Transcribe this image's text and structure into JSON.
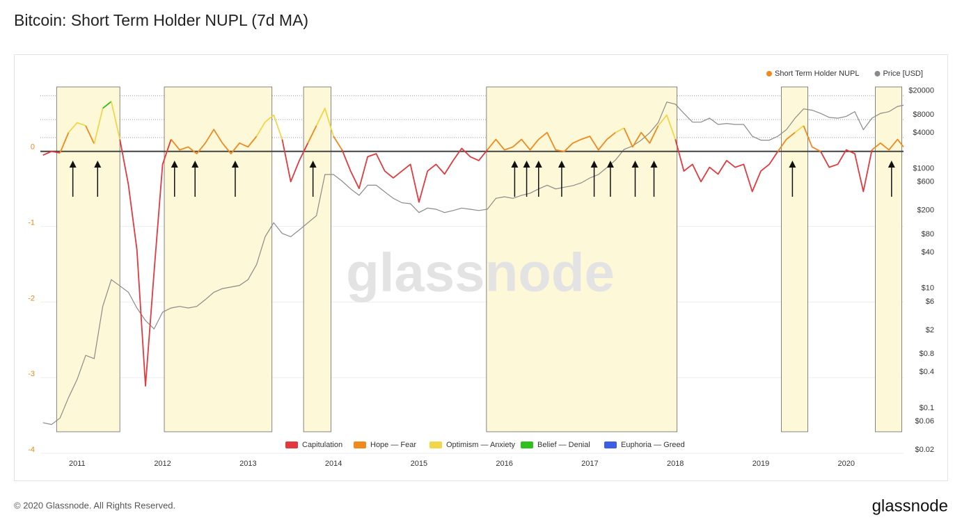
{
  "chart_data": {
    "type": "line",
    "title": "Bitcoin: Short Term Holder NUPL (7d MA)",
    "x": [
      2010.6,
      2010.7,
      2010.8,
      2010.9,
      2011.0,
      2011.1,
      2011.2,
      2011.3,
      2011.4,
      2011.5,
      2011.6,
      2011.7,
      2011.8,
      2011.9,
      2012.0,
      2012.1,
      2012.2,
      2012.3,
      2012.4,
      2012.5,
      2012.6,
      2012.7,
      2012.8,
      2012.9,
      2013.0,
      2013.1,
      2013.2,
      2013.3,
      2013.4,
      2013.5,
      2013.6,
      2013.7,
      2013.8,
      2013.9,
      2014.0,
      2014.1,
      2014.2,
      2014.3,
      2014.4,
      2014.5,
      2014.6,
      2014.7,
      2014.8,
      2014.9,
      2015.0,
      2015.1,
      2015.2,
      2015.3,
      2015.4,
      2015.5,
      2015.6,
      2015.7,
      2015.8,
      2015.9,
      2016.0,
      2016.1,
      2016.2,
      2016.3,
      2016.4,
      2016.5,
      2016.6,
      2016.7,
      2016.8,
      2016.9,
      2017.0,
      2017.1,
      2017.2,
      2017.3,
      2017.4,
      2017.5,
      2017.6,
      2017.7,
      2017.8,
      2017.9,
      2018.0,
      2018.1,
      2018.2,
      2018.3,
      2018.4,
      2018.5,
      2018.6,
      2018.7,
      2018.8,
      2018.9,
      2019.0,
      2019.1,
      2019.2,
      2019.3,
      2019.4,
      2019.5,
      2019.6,
      2019.7,
      2019.8,
      2019.9,
      2020.0,
      2020.1,
      2020.2,
      2020.3,
      2020.4,
      2020.5,
      2020.6,
      2020.67
    ],
    "series": [
      {
        "name": "Short Term Holder NUPL",
        "color": "#f0891e",
        "values": [
          -0.05,
          0,
          -0.02,
          0.25,
          0.38,
          0.34,
          0.1,
          0.57,
          0.66,
          0.16,
          -0.44,
          -1.3,
          -3.1,
          -1.6,
          -0.17,
          0.16,
          0.02,
          0.06,
          -0.03,
          0.11,
          0.29,
          0.11,
          -0.03,
          0.11,
          0.06,
          0.2,
          0.39,
          0.48,
          0.16,
          -0.4,
          -0.12,
          0.11,
          0.34,
          0.57,
          0.2,
          0.02,
          -0.26,
          -0.49,
          -0.07,
          -0.03,
          -0.26,
          -0.35,
          -0.26,
          -0.17,
          -0.67,
          -0.26,
          -0.17,
          -0.3,
          -0.12,
          0.04,
          -0.07,
          -0.12,
          0.02,
          0.16,
          0.02,
          0.06,
          0.16,
          0.02,
          0.16,
          0.25,
          0.02,
          0,
          0.11,
          0.16,
          0.2,
          0.02,
          0.16,
          0.25,
          0.31,
          0.06,
          0.25,
          0.11,
          0.34,
          0.48,
          0.16,
          -0.26,
          -0.17,
          -0.4,
          -0.21,
          -0.3,
          -0.12,
          -0.21,
          -0.17,
          -0.53,
          -0.26,
          -0.17,
          0,
          0.16,
          0.25,
          0.34,
          0.06,
          0,
          -0.21,
          -0.17,
          0.02,
          -0.03,
          -0.53,
          0.02,
          0.11,
          0.02,
          0.16,
          0.06
        ]
      },
      {
        "name": "Price [USD]",
        "color": "#8a8a8a",
        "axis": "y2",
        "values": [
          0.057,
          0.053,
          0.068,
          0.15,
          0.3,
          0.76,
          0.67,
          5,
          14,
          11,
          8.6,
          4.7,
          2.9,
          2.1,
          4,
          4.7,
          5,
          4.7,
          5,
          6.5,
          8.6,
          9.9,
          10.5,
          11.2,
          14,
          25,
          73,
          125,
          83,
          73,
          95,
          125,
          164,
          800,
          800,
          620,
          460,
          360,
          530,
          530,
          410,
          320,
          270,
          260,
          185,
          220,
          210,
          185,
          200,
          220,
          210,
          200,
          210,
          320,
          340,
          320,
          360,
          390,
          460,
          530,
          460,
          490,
          520,
          580,
          700,
          800,
          1050,
          1400,
          2100,
          2400,
          3000,
          4000,
          5900,
          13000,
          12000,
          8400,
          6000,
          6000,
          7000,
          5500,
          5700,
          5500,
          5500,
          3500,
          3000,
          3000,
          3500,
          4500,
          7000,
          10000,
          9500,
          8400,
          7200,
          7000,
          7500,
          9000,
          4500,
          7000,
          8400,
          9000,
          11000,
          11500
        ]
      }
    ],
    "zones": [
      {
        "name": "Capitulation",
        "color": "#e0393e"
      },
      {
        "name": "Hope — Fear",
        "color": "#f0891e"
      },
      {
        "name": "Optimism — Anxiety",
        "color": "#f2d649"
      },
      {
        "name": "Belief — Denial",
        "color": "#2dc01e"
      },
      {
        "name": "Euphoria — Greed",
        "color": "#3b5fe0"
      }
    ],
    "highlights": [
      [
        2010.76,
        2011.5
      ],
      [
        2012.02,
        2013.28
      ],
      [
        2013.65,
        2013.97
      ],
      [
        2015.79,
        2018.02
      ],
      [
        2019.24,
        2019.55
      ],
      [
        2020.34,
        2020.65
      ]
    ],
    "arrows": [
      2010.95,
      2011.24,
      2012.14,
      2012.38,
      2012.85,
      2013.76,
      2016.12,
      2016.26,
      2016.4,
      2016.67,
      2017.05,
      2017.24,
      2017.53,
      2017.75,
      2019.37,
      2020.53
    ],
    "xlim": [
      2010.57,
      2020.67
    ],
    "xticks": [
      2011,
      2012,
      2013,
      2014,
      2015,
      2016,
      2017,
      2018,
      2019,
      2020
    ],
    "ylim": [
      -4,
      1
    ],
    "yticks": [
      0,
      -1,
      -2,
      -3,
      -4
    ],
    "y2lim": [
      0.02,
      42000
    ],
    "y2scale": "log",
    "y2ticks": [
      {
        "value": 20000,
        "label": "$20000"
      },
      {
        "value": 8000,
        "label": "$8000"
      },
      {
        "value": 4000,
        "label": "$4000"
      },
      {
        "value": 1000,
        "label": "$1000"
      },
      {
        "value": 600,
        "label": "$600"
      },
      {
        "value": 200,
        "label": "$200"
      },
      {
        "value": 80,
        "label": "$80"
      },
      {
        "value": 40,
        "label": "$40"
      },
      {
        "value": 10,
        "label": "$10"
      },
      {
        "value": 6,
        "label": "$6"
      },
      {
        "value": 2,
        "label": "$2"
      },
      {
        "value": 0.8,
        "label": "$0.8"
      },
      {
        "value": 0.4,
        "label": "$0.4"
      },
      {
        "value": 0.1,
        "label": "$0.1"
      },
      {
        "value": 0.06,
        "label": "$0.06"
      },
      {
        "value": 0.02,
        "label": "$0.02"
      }
    ],
    "grid": true,
    "legend": "top-right"
  },
  "watermark": "glassnode",
  "footer": "© 2020 Glassnode. All Rights Reserved.",
  "logo": "glassnode"
}
